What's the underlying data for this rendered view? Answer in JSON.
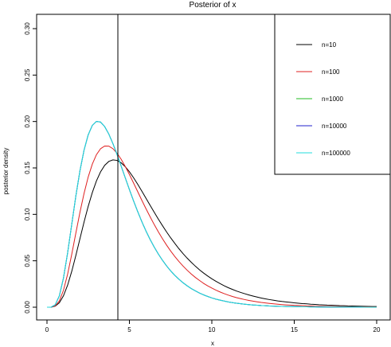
{
  "chart_data": {
    "type": "line",
    "title": "Posterior of x",
    "xlabel": "x",
    "ylabel": "posterior density",
    "xlim": [
      0,
      20
    ],
    "ylim": [
      0,
      0.3
    ],
    "x_ticks": [
      0,
      5,
      10,
      15,
      20
    ],
    "y_ticks": [
      0.0,
      0.05,
      0.1,
      0.15,
      0.2,
      0.25,
      0.3
    ],
    "x_tick_labels": [
      "0",
      "5",
      "10",
      "15",
      "20"
    ],
    "y_tick_labels": [
      "0.00",
      "0.05",
      "0.10",
      "0.15",
      "0.20",
      "0.25",
      "0.30"
    ],
    "vline": 4.3,
    "legend_position": "top-right",
    "grid": false,
    "x": [
      0,
      0.25,
      0.5,
      0.75,
      1,
      1.25,
      1.5,
      1.75,
      2,
      2.25,
      2.5,
      2.75,
      3,
      3.25,
      3.5,
      3.75,
      4,
      4.25,
      4.5,
      4.75,
      5,
      5.25,
      5.5,
      5.75,
      6,
      6.25,
      6.5,
      6.75,
      7,
      7.25,
      7.5,
      7.75,
      8,
      8.25,
      8.5,
      8.75,
      9,
      9.25,
      9.5,
      9.75,
      10,
      10.25,
      10.5,
      10.75,
      11,
      11.25,
      11.5,
      11.75,
      12,
      12.25,
      12.5,
      12.75,
      13,
      13.25,
      13.5,
      13.75,
      14,
      14.25,
      14.5,
      14.75,
      15,
      15.25,
      15.5,
      15.75,
      16,
      16.25,
      16.5,
      16.75,
      17,
      17.25,
      17.5,
      17.75,
      18,
      18.25,
      18.5,
      18.75,
      19,
      19.25,
      19.5,
      19.75,
      20
    ],
    "series": [
      {
        "name": "n=10",
        "color": "#000000",
        "values": [
          0.0,
          0.0,
          0.0011,
          0.0048,
          0.0123,
          0.0237,
          0.0385,
          0.0556,
          0.0738,
          0.0918,
          0.1086,
          0.1235,
          0.136,
          0.1458,
          0.1528,
          0.157,
          0.1587,
          0.1581,
          0.1555,
          0.1513,
          0.1459,
          0.1395,
          0.1325,
          0.1251,
          0.1175,
          0.1099,
          0.1024,
          0.095,
          0.088,
          0.0812,
          0.0748,
          0.0688,
          0.0631,
          0.0578,
          0.0529,
          0.0484,
          0.0442,
          0.0403,
          0.0368,
          0.0336,
          0.0306,
          0.0279,
          0.0254,
          0.0231,
          0.021,
          0.0192,
          0.0174,
          0.0159,
          0.0145,
          0.0132,
          0.012,
          0.0109,
          0.0099,
          0.009,
          0.0082,
          0.0075,
          0.0068,
          0.0062,
          0.0057,
          0.0052,
          0.0047,
          0.0043,
          0.0039,
          0.0036,
          0.0032,
          0.003,
          0.0027,
          0.0025,
          0.0022,
          0.0021,
          0.0019,
          0.0017,
          0.0016,
          0.0014,
          0.0013,
          0.0012,
          0.0011,
          0.001,
          0.0009,
          0.0008,
          0.0008
        ]
      },
      {
        "name": "n=100",
        "color": "#df2020",
        "values": [
          0.0,
          0.0,
          0.0014,
          0.0068,
          0.0182,
          0.0355,
          0.0568,
          0.0797,
          0.1022,
          0.1227,
          0.1402,
          0.1541,
          0.1643,
          0.1707,
          0.1736,
          0.1735,
          0.1707,
          0.1658,
          0.1593,
          0.1515,
          0.1429,
          0.1338,
          0.1246,
          0.1153,
          0.1063,
          0.0976,
          0.0892,
          0.0813,
          0.0739,
          0.067,
          0.0606,
          0.0547,
          0.0493,
          0.0444,
          0.0399,
          0.0358,
          0.0321,
          0.0288,
          0.0257,
          0.023,
          0.0206,
          0.0184,
          0.0164,
          0.0146,
          0.013,
          0.0116,
          0.0103,
          0.0092,
          0.0082,
          0.0073,
          0.0065,
          0.0058,
          0.0051,
          0.0046,
          0.0041,
          0.0036,
          0.0032,
          0.0028,
          0.0025,
          0.0023,
          0.002,
          0.0018,
          0.0016,
          0.0014,
          0.0013,
          0.0011,
          0.001,
          0.0009,
          0.0008,
          0.0007,
          0.0006,
          0.0006,
          0.0005,
          0.0005,
          0.0004,
          0.0004,
          0.0003,
          0.0003,
          0.0003,
          0.0002,
          0.0002
        ]
      },
      {
        "name": "n=1000",
        "color": "#22bb22",
        "values": [
          0.0,
          0.0001,
          0.0026,
          0.0122,
          0.0314,
          0.0583,
          0.089,
          0.1196,
          0.147,
          0.1693,
          0.1856,
          0.1958,
          0.2001,
          0.1994,
          0.1945,
          0.1865,
          0.1762,
          0.1645,
          0.152,
          0.1393,
          0.1267,
          0.1146,
          0.1031,
          0.0923,
          0.0823,
          0.0732,
          0.0649,
          0.0574,
          0.0507,
          0.0446,
          0.0392,
          0.0344,
          0.0302,
          0.0264,
          0.0231,
          0.0201,
          0.0176,
          0.0153,
          0.0133,
          0.0116,
          0.01,
          0.0087,
          0.0076,
          0.0066,
          0.0057,
          0.0049,
          0.0043,
          0.0037,
          0.0032,
          0.0028,
          0.0024,
          0.0021,
          0.0018,
          0.0016,
          0.0013,
          0.0012,
          0.001,
          0.0009,
          0.0008,
          0.0007,
          0.0006,
          0.0005,
          0.0004,
          0.0004,
          0.0003,
          0.0003,
          0.0002,
          0.0002,
          0.0002,
          0.0001,
          0.0001,
          0.0001,
          0.0001,
          0.0001,
          0.0001,
          0.0001,
          0.0001,
          0.0,
          0.0,
          0.0,
          0.0
        ]
      },
      {
        "name": "n=10000",
        "color": "#2020cc",
        "values": [
          0.0,
          0.0001,
          0.0026,
          0.0122,
          0.0314,
          0.0583,
          0.089,
          0.1196,
          0.147,
          0.1693,
          0.1856,
          0.1958,
          0.2001,
          0.1994,
          0.1945,
          0.1865,
          0.1762,
          0.1645,
          0.152,
          0.1393,
          0.1267,
          0.1146,
          0.1031,
          0.0923,
          0.0823,
          0.0732,
          0.0649,
          0.0574,
          0.0507,
          0.0446,
          0.0392,
          0.0344,
          0.0302,
          0.0264,
          0.0231,
          0.0201,
          0.0176,
          0.0153,
          0.0133,
          0.0116,
          0.01,
          0.0087,
          0.0076,
          0.0066,
          0.0057,
          0.0049,
          0.0043,
          0.0037,
          0.0032,
          0.0028,
          0.0024,
          0.0021,
          0.0018,
          0.0016,
          0.0013,
          0.0012,
          0.001,
          0.0009,
          0.0008,
          0.0007,
          0.0006,
          0.0005,
          0.0004,
          0.0004,
          0.0003,
          0.0003,
          0.0002,
          0.0002,
          0.0002,
          0.0001,
          0.0001,
          0.0001,
          0.0001,
          0.0001,
          0.0001,
          0.0001,
          0.0001,
          0.0,
          0.0,
          0.0,
          0.0
        ]
      },
      {
        "name": "n=100000",
        "color": "#22dddd",
        "values": [
          0.0,
          0.0001,
          0.0026,
          0.0122,
          0.0314,
          0.0583,
          0.089,
          0.1196,
          0.147,
          0.1693,
          0.1856,
          0.1958,
          0.2001,
          0.1994,
          0.1945,
          0.1865,
          0.1762,
          0.1645,
          0.152,
          0.1393,
          0.1267,
          0.1146,
          0.1031,
          0.0923,
          0.0823,
          0.0732,
          0.0649,
          0.0574,
          0.0507,
          0.0446,
          0.0392,
          0.0344,
          0.0302,
          0.0264,
          0.0231,
          0.0201,
          0.0176,
          0.0153,
          0.0133,
          0.0116,
          0.01,
          0.0087,
          0.0076,
          0.0066,
          0.0057,
          0.0049,
          0.0043,
          0.0037,
          0.0032,
          0.0028,
          0.0024,
          0.0021,
          0.0018,
          0.0016,
          0.0013,
          0.0012,
          0.001,
          0.0009,
          0.0008,
          0.0007,
          0.0006,
          0.0005,
          0.0004,
          0.0004,
          0.0003,
          0.0003,
          0.0002,
          0.0002,
          0.0002,
          0.0001,
          0.0001,
          0.0001,
          0.0001,
          0.0001,
          0.0001,
          0.0001,
          0.0001,
          0.0,
          0.0,
          0.0,
          0.0
        ]
      }
    ]
  }
}
